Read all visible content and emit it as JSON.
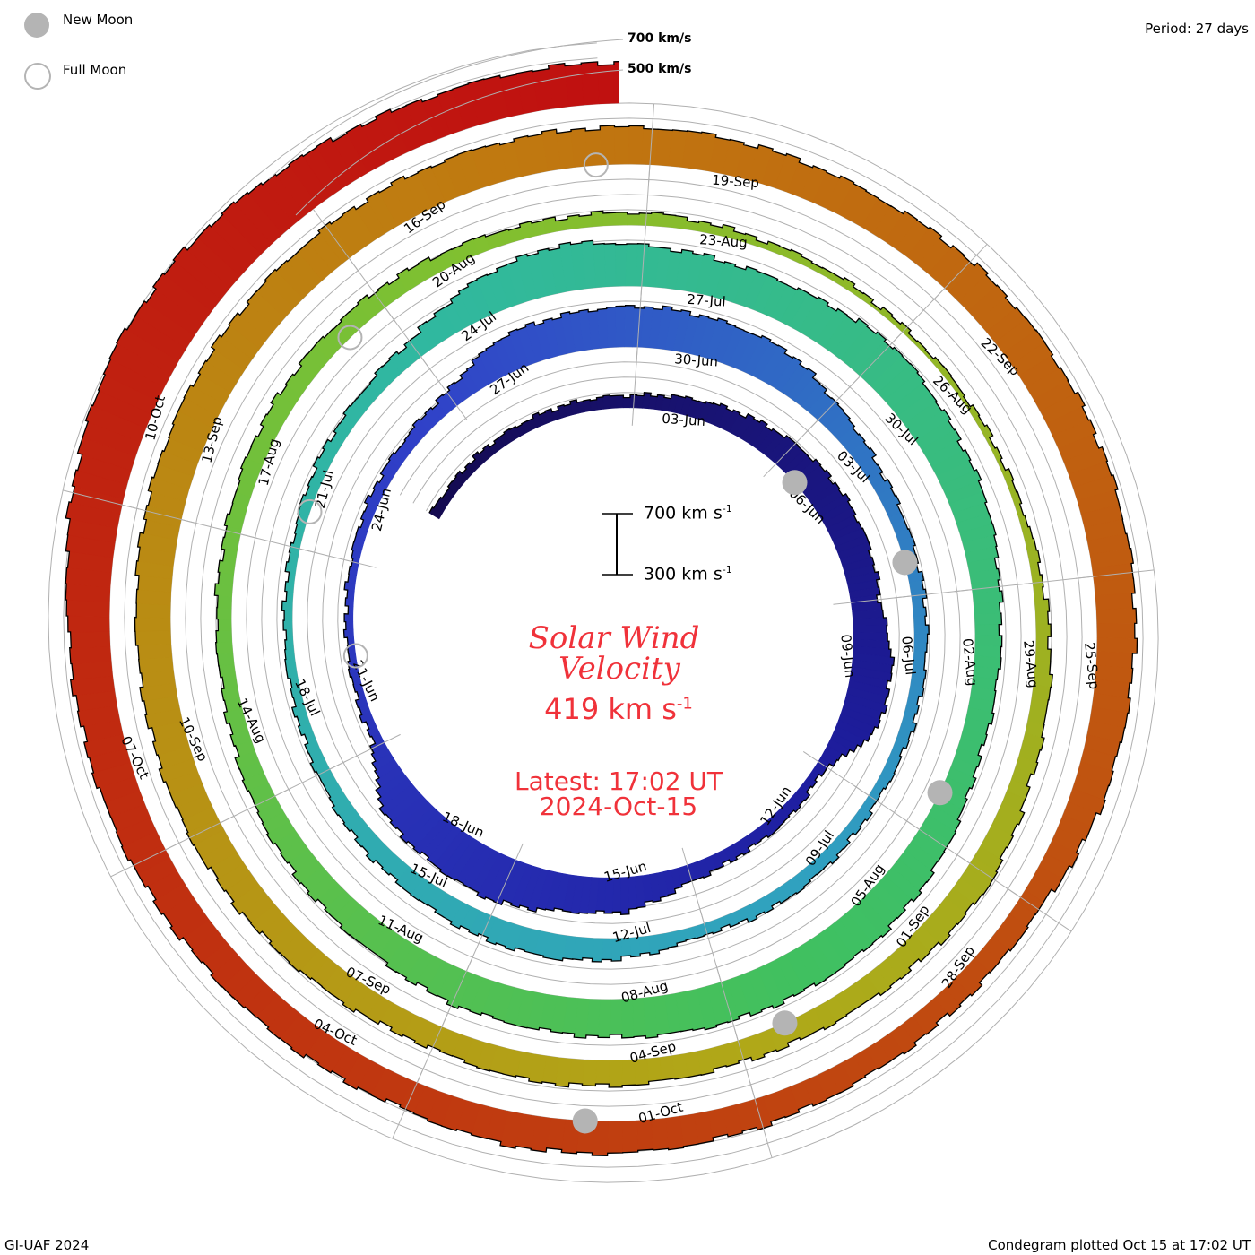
{
  "legend": {
    "new_moon": "New Moon",
    "full_moon": "Full Moon",
    "period": "Period: 27 days",
    "ring_700": "700 km/s",
    "ring_500": "500 km/s",
    "scale_top": "700 km s",
    "scale_bottom": "300 km s",
    "scale_exp": "-1"
  },
  "center": {
    "title_line1": "Solar Wind",
    "title_line2": "Velocity",
    "current_value": "419 km s",
    "current_exp": "-1",
    "latest": "Latest: 17:02 UT",
    "latest_date": "2024-Oct-15"
  },
  "footer": {
    "credit": "GI-UAF 2024",
    "plotted": "Condegram plotted Oct 15 at 17:02 UT"
  },
  "colors": {
    "title": "#f0323a",
    "moon": "#b4b4b4",
    "grid": "#b0b0b0",
    "gradient": [
      "#140a50",
      "#1e1ea0",
      "#3040c8",
      "#30a0c0",
      "#30b8a0",
      "#40c060",
      "#80c030",
      "#b0a818",
      "#c07810",
      "#c04010",
      "#c01010"
    ]
  },
  "chart_data": {
    "type": "spiral-area",
    "title": "Solar Wind Velocity",
    "units": "km/s",
    "period_days": 27,
    "start_date": "2024-05-29",
    "end_date": "2024-10-15",
    "end_hour_ut": 17.03,
    "baseline_kms": 300,
    "scale_kms": [
      300,
      700
    ],
    "daily_values": [
      360,
      360,
      370,
      380,
      385,
      390,
      420,
      450,
      480,
      500,
      500,
      480,
      560,
      560,
      360,
      390,
      390,
      420,
      530,
      540,
      600,
      580,
      560,
      360,
      350,
      350,
      360,
      380,
      390,
      420,
      540,
      550,
      560,
      550,
      540,
      450,
      400,
      390,
      390,
      390,
      385,
      370,
      385,
      390,
      360,
      420,
      450,
      450,
      430,
      420,
      390,
      370,
      360,
      360,
      380,
      390,
      420,
      540,
      600,
      560,
      540,
      550,
      600,
      560,
      540,
      480,
      460,
      450,
      510,
      550,
      560,
      560,
      550,
      540,
      540,
      500,
      480,
      450,
      400,
      390,
      390,
      410,
      420,
      420,
      400,
      390,
      390,
      360,
      350,
      330,
      330,
      330,
      360,
      400,
      420,
      480,
      460,
      450,
      450,
      470,
      480,
      450,
      470,
      490,
      510,
      510,
      520,
      540,
      550,
      560,
      560,
      560,
      550,
      540,
      520,
      510,
      540,
      550,
      560,
      560,
      540,
      520,
      450,
      450,
      460,
      480,
      500,
      510,
      480,
      500,
      510,
      540,
      560,
      580,
      650,
      710,
      690,
      620,
      570,
      560
    ],
    "date_labels": [
      "03-Jun",
      "06-Jun",
      "09-Jun",
      "12-Jun",
      "15-Jun",
      "18-Jun",
      "21-Jun",
      "24-Jun",
      "27-Jun",
      "30-Jun",
      "03-Jul",
      "06-Jul",
      "09-Jul",
      "12-Jul",
      "15-Jul",
      "18-Jul",
      "21-Jul",
      "24-Jul",
      "27-Jul",
      "30-Jul",
      "02-Aug",
      "05-Aug",
      "08-Aug",
      "11-Aug",
      "14-Aug",
      "17-Aug",
      "20-Aug",
      "23-Aug",
      "26-Aug",
      "29-Aug",
      "01-Sep",
      "04-Sep",
      "07-Sep",
      "10-Sep",
      "13-Sep",
      "16-Sep",
      "19-Sep",
      "22-Sep",
      "25-Sep",
      "28-Sep",
      "01-Oct",
      "04-Oct",
      "07-Oct",
      "10-Oct"
    ],
    "new_moons": [
      "2024-06-06",
      "2024-07-05",
      "2024-08-04",
      "2024-09-03",
      "2024-10-02"
    ],
    "full_moons": [
      "2024-06-22",
      "2024-07-21",
      "2024-08-19",
      "2024-09-18"
    ]
  }
}
